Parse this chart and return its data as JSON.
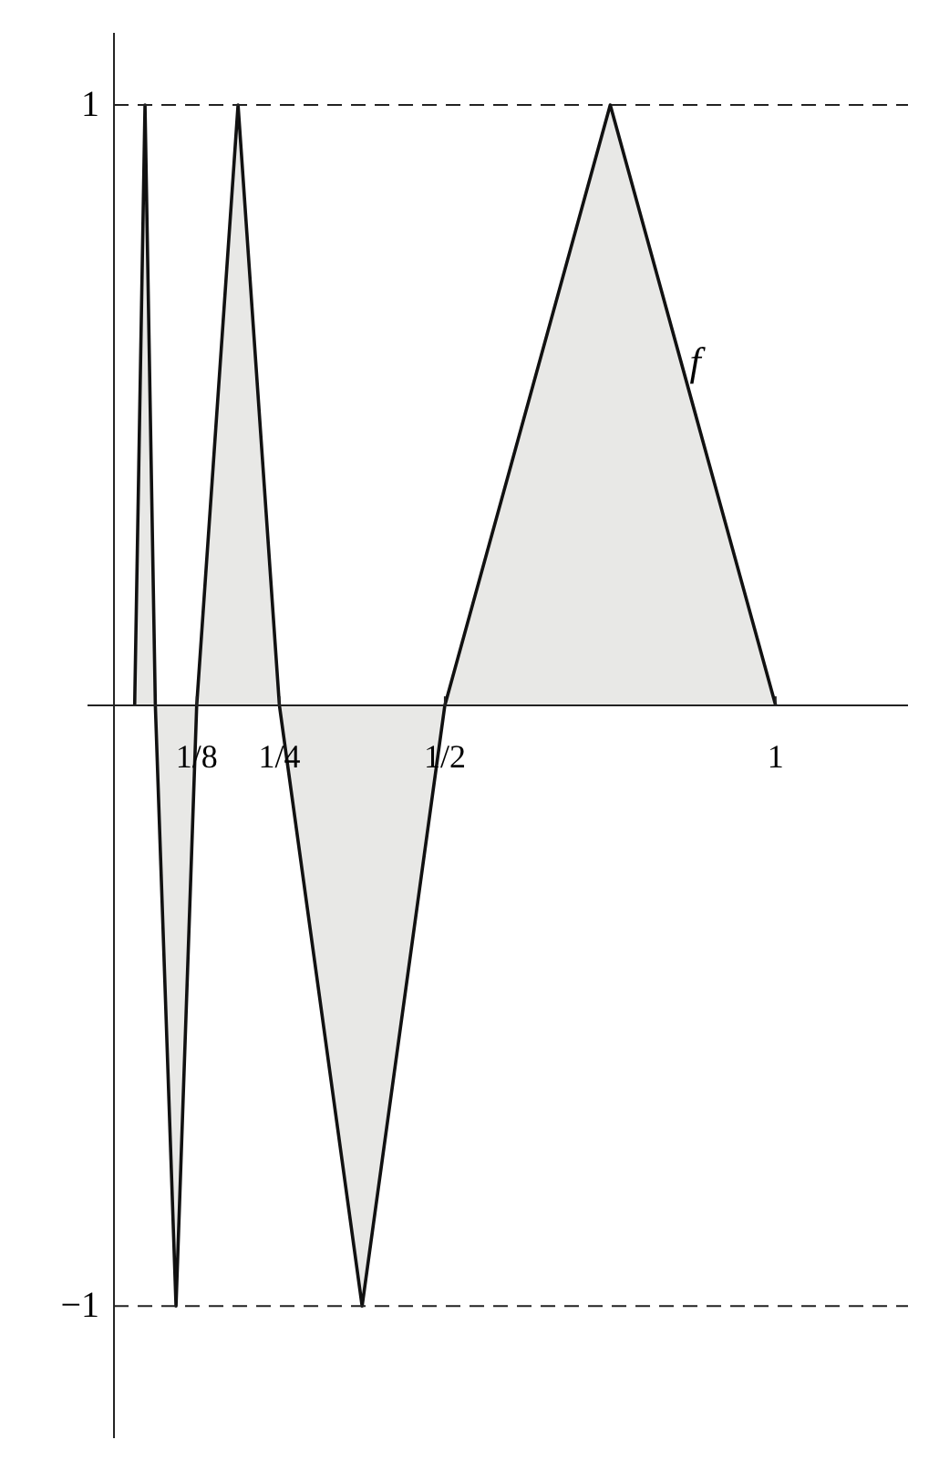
{
  "chart_data": {
    "type": "area",
    "x": [
      0.03125,
      0.046875,
      0.0625,
      0.09375,
      0.125,
      0.1875,
      0.25,
      0.375,
      0.5,
      0.75,
      1
    ],
    "series": [
      {
        "color": "#e8e8e6",
        "values": [
          0,
          1,
          0,
          -1,
          0,
          1,
          0,
          -1,
          0,
          1,
          0
        ]
      }
    ],
    "xlim": [
      -0.04,
      1.2
    ],
    "ylim": [
      -1.22,
      1.12
    ],
    "xticks": [
      {
        "value": 0.125,
        "label": "1/8"
      },
      {
        "value": 0.25,
        "label": "1/4"
      },
      {
        "value": 0.5,
        "label": "1/2"
      },
      {
        "value": 1,
        "label": "1"
      }
    ],
    "yticks": [
      {
        "value": 1,
        "label": "1"
      },
      {
        "value": -1,
        "label": "−1"
      }
    ],
    "ref_lines": [
      {
        "axis": "y",
        "value": 1,
        "line_style": "dashed"
      },
      {
        "axis": "y",
        "value": -1,
        "line_style": "dashed"
      }
    ],
    "annotations": [
      {
        "text": "f",
        "x": 0.87,
        "y": 0.55
      }
    ],
    "grid": false
  }
}
